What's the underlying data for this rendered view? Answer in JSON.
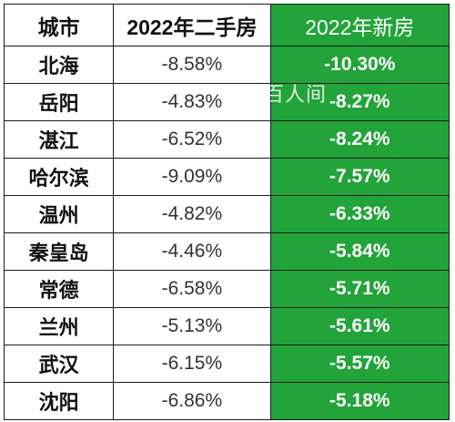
{
  "table": {
    "headers": {
      "city": "城市",
      "used": "2022年二手房",
      "new": "2022年新房"
    },
    "rows": [
      {
        "city": "北海",
        "used": "-8.58%",
        "new": "-10.30%"
      },
      {
        "city": "岳阳",
        "used": "-4.83%",
        "new": "-8.27%"
      },
      {
        "city": "湛江",
        "used": "-6.52%",
        "new": "-8.24%"
      },
      {
        "city": "哈尔滨",
        "used": "-9.09%",
        "new": "-7.57%"
      },
      {
        "city": "温州",
        "used": "-4.82%",
        "new": "-6.33%"
      },
      {
        "city": "秦皇岛",
        "used": "-4.46%",
        "new": "-5.84%"
      },
      {
        "city": "常德",
        "used": "-6.58%",
        "new": "-5.71%"
      },
      {
        "city": "兰州",
        "used": "-5.13%",
        "new": "-5.61%"
      },
      {
        "city": "武汉",
        "used": "-6.15%",
        "new": "-5.57%"
      },
      {
        "city": "沈阳",
        "used": "-6.86%",
        "new": "-5.18%"
      }
    ]
  },
  "watermark": "百人间",
  "colors": {
    "new_column_bg": "#22a43a",
    "border": "#1a1a1a"
  }
}
